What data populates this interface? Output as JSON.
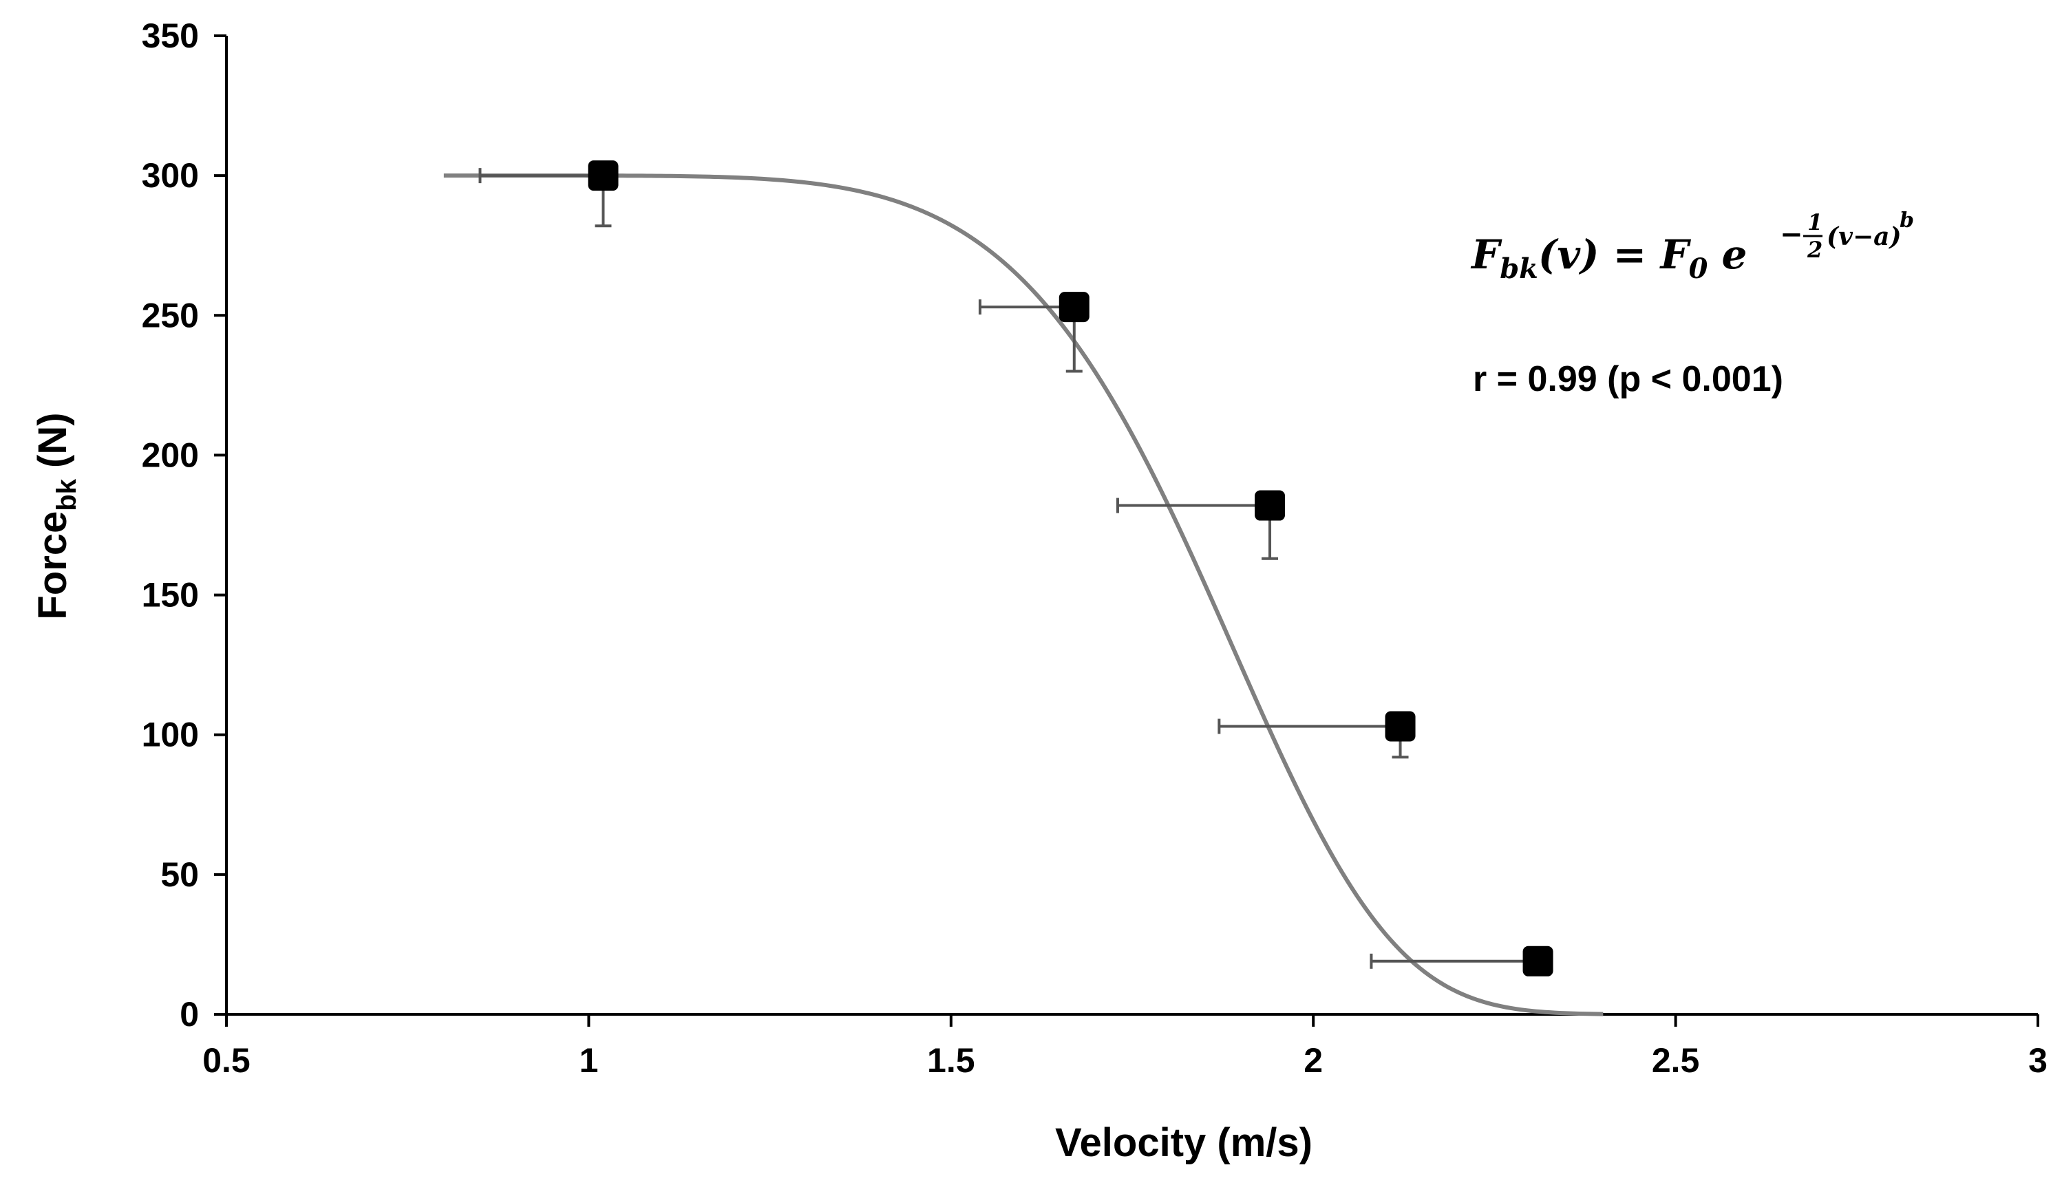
{
  "chart_data": {
    "type": "scatter",
    "title": "",
    "xlabel": "Velocity (m/s)",
    "ylabel": {
      "main": "Force",
      "subscript": "bk",
      "unit": "(N)"
    },
    "xlim": [
      0.5,
      3
    ],
    "ylim": [
      0,
      350
    ],
    "xticks": [
      0.5,
      1,
      1.5,
      2,
      2.5,
      3
    ],
    "xtick_labels": [
      "0.5",
      "1",
      "1.5",
      "2",
      "2.5",
      "3"
    ],
    "yticks": [
      0,
      50,
      100,
      150,
      200,
      250,
      300,
      350
    ],
    "ytick_labels": [
      "0",
      "50",
      "100",
      "150",
      "200",
      "250",
      "300",
      "350"
    ],
    "grid": false,
    "series": [
      {
        "name": "data",
        "marker": "square",
        "points": [
          {
            "x": 1.02,
            "y": 300,
            "x_err_lower": 0.17,
            "y_err_lower": 18
          },
          {
            "x": 1.67,
            "y": 253,
            "x_err_lower": 0.13,
            "y_err_lower": 23
          },
          {
            "x": 1.94,
            "y": 182,
            "x_err_lower": 0.21,
            "y_err_lower": 19
          },
          {
            "x": 2.12,
            "y": 103,
            "x_err_lower": 0.25,
            "y_err_lower": 11
          },
          {
            "x": 2.31,
            "y": 19,
            "x_err_lower": 0.23,
            "y_err_lower": 0
          }
        ]
      },
      {
        "name": "fit",
        "type": "line",
        "model": "F0*exp(-0.5*(v-a)^b)",
        "params": {
          "F0": 300,
          "a": 0.8,
          "b": 5.9
        },
        "x_range": [
          0.8,
          2.4
        ]
      }
    ],
    "annotations": {
      "equation": {
        "lhs_F": "F",
        "lhs_sub": "bk",
        "lhs_arg": "(v) = ",
        "rhs_F": "F",
        "rhs_sub": "0",
        "base": "e",
        "minus": "−",
        "frac_num": "1",
        "frac_den": "2",
        "exp_arg": "(v−a)",
        "exp_power": "b"
      },
      "stats": "r = 0.99  (p < 0.001)"
    },
    "colors": {
      "axis": "#000000",
      "fit_line": "#808080",
      "errorbar": "#555555",
      "marker": "#000000"
    }
  }
}
